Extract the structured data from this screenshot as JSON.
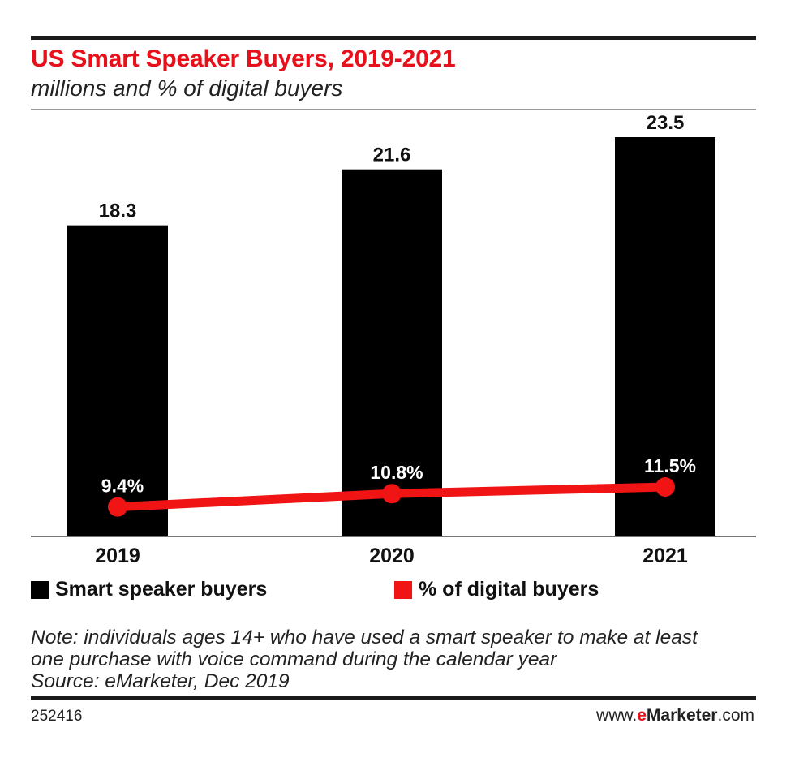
{
  "title": "US Smart Speaker Buyers, 2019-2021",
  "subtitle": "millions and % of digital buyers",
  "legend": {
    "bars_label": "Smart speaker buyers",
    "line_label": "% of digital buyers"
  },
  "note": {
    "line1": "Note: individuals ages 14+ who have used a smart speaker to make at least",
    "line2": "one purchase with voice command during the calendar year",
    "source": "Source: eMarketer, Dec 2019"
  },
  "chart_id": "252416",
  "brand": {
    "prefix": "www.",
    "e": "e",
    "name": "Marketer",
    "suffix": ".com"
  },
  "colors": {
    "bar": "#000000",
    "line": "#f01414",
    "title": "#e8101a"
  },
  "chart_data": {
    "type": "bar",
    "categories": [
      "2019",
      "2020",
      "2021"
    ],
    "series": [
      {
        "name": "Smart speaker buyers",
        "type": "bar",
        "values": [
          18.3,
          21.6,
          23.5
        ],
        "labels": [
          "18.3",
          "21.6",
          "23.5"
        ]
      },
      {
        "name": "% of digital buyers",
        "type": "line",
        "values": [
          9.4,
          10.8,
          11.5
        ],
        "labels": [
          "9.4%",
          "10.8%",
          "11.5%"
        ]
      }
    ],
    "ylim": [
      0,
      23.5
    ],
    "grid": false,
    "legend_position": "bottom-left"
  }
}
